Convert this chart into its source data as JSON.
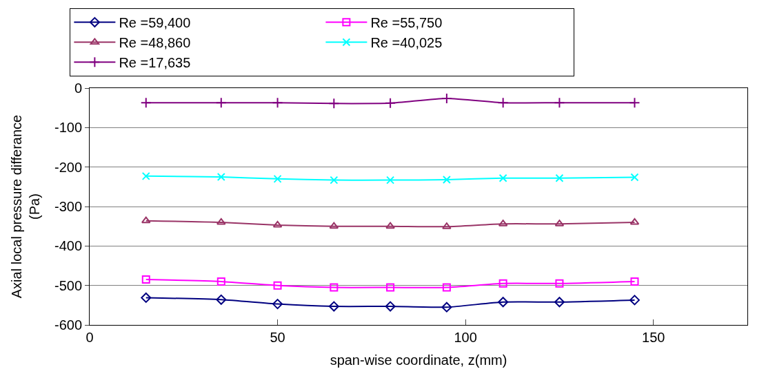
{
  "chart_data": {
    "type": "line",
    "xlabel": "span-wise coordinate, z(mm)",
    "ylabel": "Axial local pressure differance\n(Pa)",
    "x": [
      15,
      35,
      50,
      65,
      80,
      95,
      110,
      125,
      145
    ],
    "series": [
      {
        "name": "Re =59,400",
        "color": "#000080",
        "marker": "diamond",
        "values": [
          -531,
          -536,
          -547,
          -553,
          -553,
          -555,
          -542,
          -542,
          -537
        ]
      },
      {
        "name": "Re =55,750",
        "color": "#ff00ff",
        "marker": "square",
        "values": [
          -485,
          -490,
          -500,
          -505,
          -505,
          -505,
          -495,
          -495,
          -490
        ]
      },
      {
        "name": "Re =48,860",
        "color": "#993366",
        "marker": "triangle",
        "values": [
          -336,
          -340,
          -347,
          -350,
          -350,
          -351,
          -344,
          -344,
          -340
        ]
      },
      {
        "name": "Re =40,025",
        "color": "#00ffff",
        "marker": "cross",
        "values": [
          -223,
          -225,
          -230,
          -233,
          -233,
          -232,
          -228,
          -228,
          -226
        ]
      },
      {
        "name": "Re =17,635",
        "color": "#800080",
        "marker": "plus",
        "values": [
          -37,
          -37,
          -37,
          -39,
          -38,
          -26,
          -37,
          -37,
          -37
        ]
      }
    ],
    "xlim": [
      0,
      175
    ],
    "xticks": [
      0,
      50,
      100,
      150
    ],
    "ylim": [
      -600,
      0
    ],
    "yticks": [
      -600,
      -500,
      -400,
      -300,
      -200,
      -100,
      0
    ],
    "grid": "y",
    "legend": "top",
    "line_style": "solid"
  }
}
